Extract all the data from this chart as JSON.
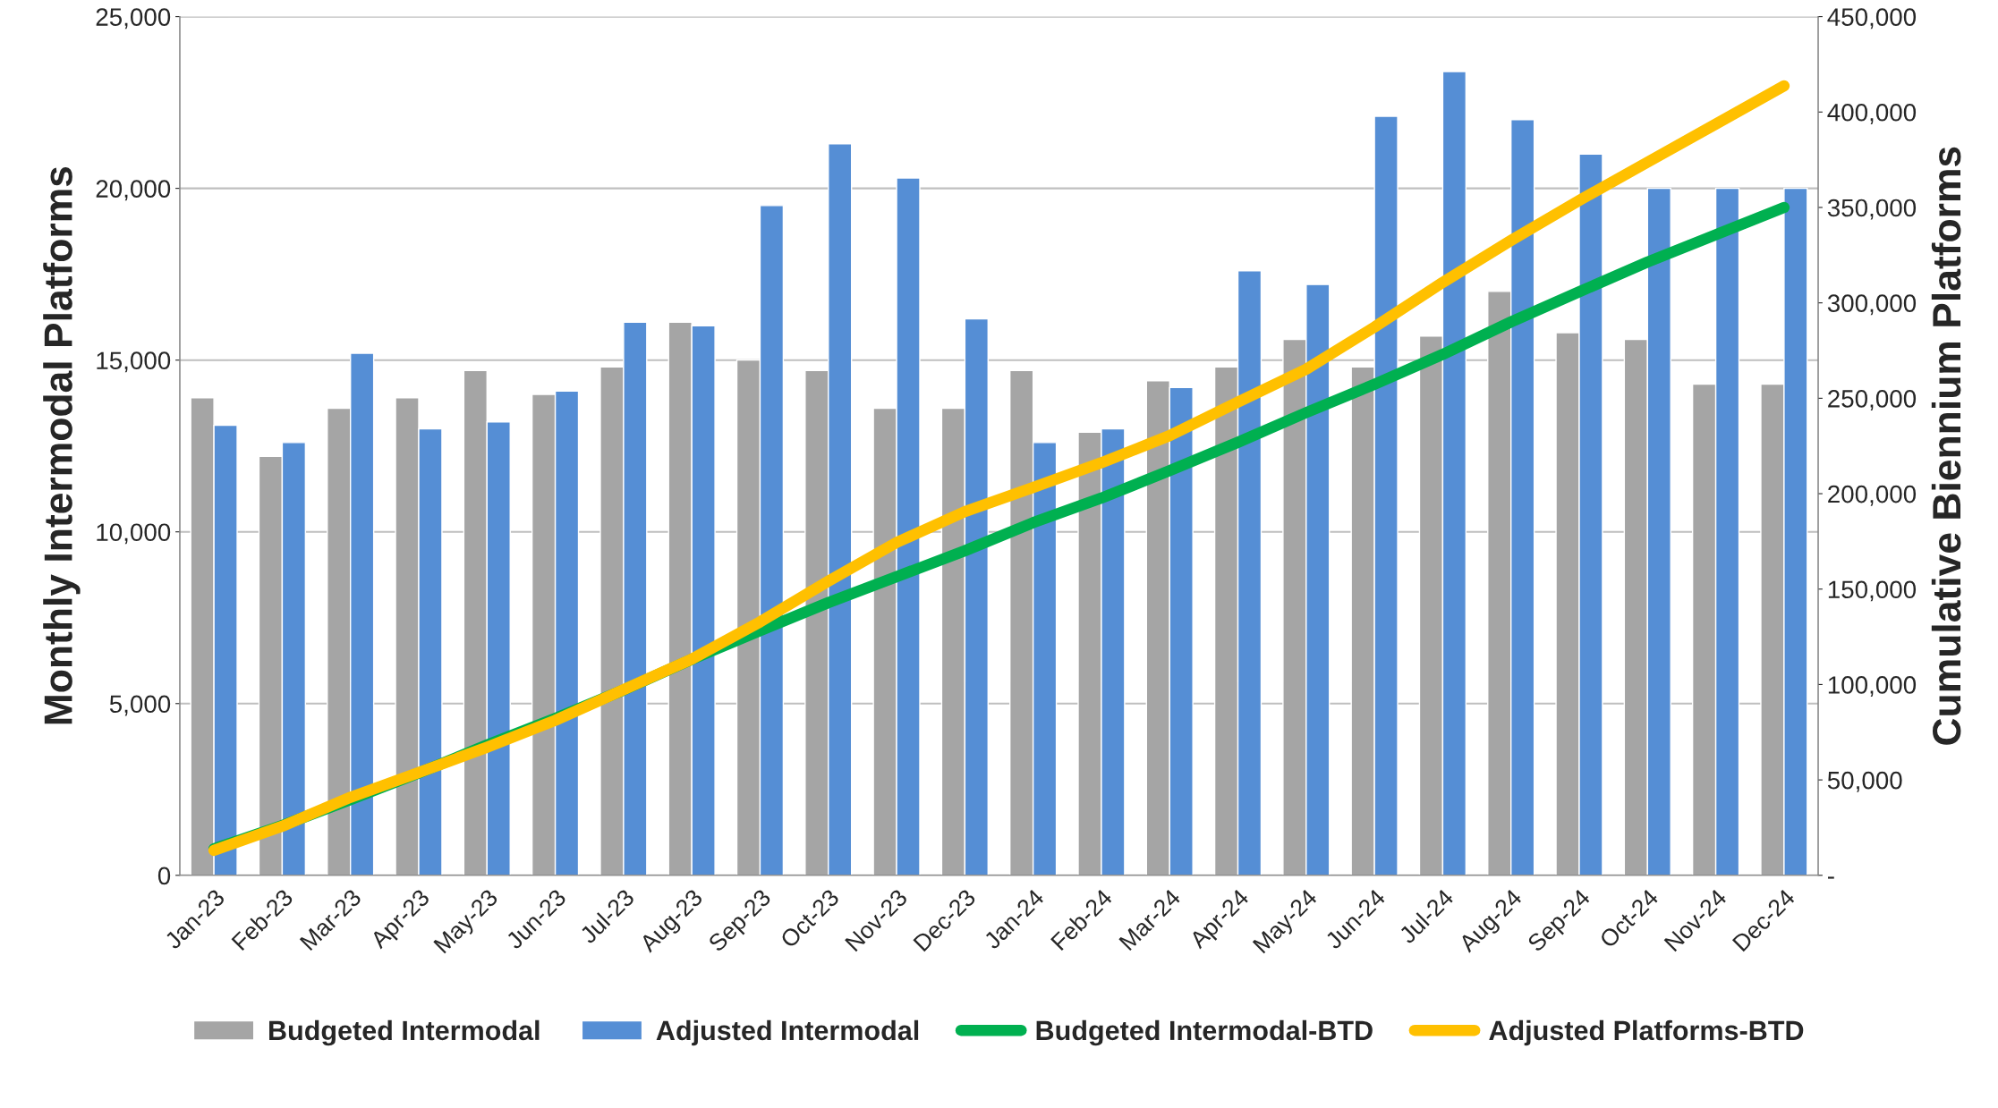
{
  "chart_data": {
    "type": "bar",
    "ylabel": "Monthly Intermodal Platforms",
    "y2label": "Cumulative Biennium Platforms",
    "categories": [
      "Jan-23",
      "Feb-23",
      "Mar-23",
      "Apr-23",
      "May-23",
      "Jun-23",
      "Jul-23",
      "Aug-23",
      "Sep-23",
      "Oct-23",
      "Nov-23",
      "Dec-23",
      "Jan-24",
      "Feb-24",
      "Mar-24",
      "Apr-24",
      "May-24",
      "Jun-24",
      "Jul-24",
      "Aug-24",
      "Sep-24",
      "Oct-24",
      "Nov-24",
      "Dec-24"
    ],
    "series": [
      {
        "name": "Budgeted Intermodal",
        "color": "#a5a5a5",
        "values": [
          13900,
          12200,
          13600,
          13900,
          14700,
          14000,
          14800,
          16100,
          15000,
          14700,
          13600,
          13600,
          14700,
          12900,
          14400,
          14800,
          15600,
          14800,
          15700,
          17000,
          15800,
          15600,
          14300,
          14300
        ]
      },
      {
        "name": "Adjusted Intermodal",
        "color": "#558ed5",
        "values": [
          13100,
          12600,
          15200,
          13000,
          13200,
          14100,
          16100,
          16000,
          19500,
          21300,
          20300,
          16200,
          12600,
          13000,
          14200,
          17600,
          17200,
          22100,
          23400,
          22000,
          21000,
          20000,
          20000,
          20000
        ]
      },
      {
        "name": "Budgeted Intermodal-BTD",
        "type": "line",
        "axis": "y2",
        "color": "#00b050",
        "values": [
          13900,
          26100,
          39700,
          53600,
          68300,
          82300,
          97100,
          113200,
          128200,
          142900,
          156500,
          170100,
          184800,
          197700,
          212100,
          226900,
          242500,
          257300,
          273000,
          290000,
          305800,
          321400,
          335700,
          350000
        ]
      },
      {
        "name": "Adjusted Platforms-BTD",
        "type": "line",
        "axis": "y2",
        "color": "#ffc000",
        "values": [
          13100,
          25700,
          40900,
          53900,
          67100,
          81200,
          97300,
          113300,
          132800,
          154100,
          174400,
          190600,
          203200,
          216200,
          230400,
          248000,
          265200,
          287300,
          310700,
          332700,
          353700,
          373700,
          393700,
          413700
        ]
      }
    ],
    "ylim": [
      0,
      25000
    ],
    "yticks": [
      0,
      {
        "value": 5000,
        "label": "5,000"
      },
      {
        "value": 10000,
        "label": "10,000"
      },
      {
        "value": 15000,
        "label": "15,000"
      },
      {
        "value": 20000,
        "label": "20,000"
      },
      {
        "value": 25000,
        "label": "25,000"
      }
    ],
    "y2lim": [
      0,
      450000
    ],
    "y2ticks": [
      {
        "value": 0,
        "label": "-"
      },
      {
        "value": 50000,
        "label": "50,000"
      },
      {
        "value": 100000,
        "label": "100,000"
      },
      {
        "value": 150000,
        "label": "150,000"
      },
      {
        "value": 200000,
        "label": "200,000"
      },
      {
        "value": 250000,
        "label": "250,000"
      },
      {
        "value": 300000,
        "label": "300,000"
      },
      {
        "value": 350000,
        "label": "350,000"
      },
      {
        "value": 400000,
        "label": "400,000"
      },
      {
        "value": 450000,
        "label": "450,000"
      }
    ],
    "grid": "y",
    "legend": "bottom"
  }
}
